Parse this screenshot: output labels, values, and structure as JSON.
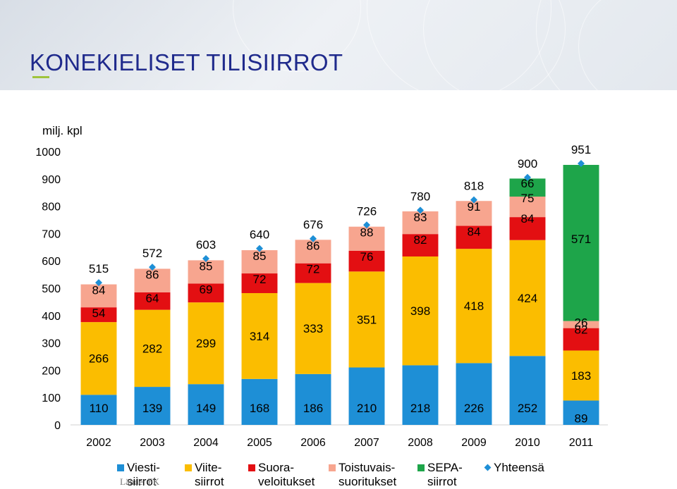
{
  "slide": {
    "title": "KONEKIELISET TILISIIRROT",
    "footer": "Lähde: FK"
  },
  "chart_data": {
    "type": "bar",
    "stacked": true,
    "unit_label": "milj. kpl",
    "categories": [
      "2002",
      "2003",
      "2004",
      "2005",
      "2006",
      "2007",
      "2008",
      "2009",
      "2010",
      "2011"
    ],
    "ylim": [
      0,
      1000
    ],
    "yticks": [
      0,
      100,
      200,
      300,
      400,
      500,
      600,
      700,
      800,
      900,
      1000
    ],
    "grid": false,
    "legend_position": "bottom",
    "series": [
      {
        "name": "Viesti-\nsiirrot",
        "color": "#1e8fd6",
        "values": [
          110,
          139,
          149,
          168,
          186,
          210,
          218,
          226,
          252,
          89
        ]
      },
      {
        "name": "Viite-\nsiirrot",
        "color": "#fbbd00",
        "values": [
          266,
          282,
          299,
          314,
          333,
          351,
          398,
          418,
          424,
          183
        ]
      },
      {
        "name": "Suora-\nveloitukset",
        "color": "#e30f12",
        "values": [
          54,
          64,
          69,
          72,
          72,
          76,
          82,
          84,
          84,
          82
        ]
      },
      {
        "name": "Toistuvais-\nsuoritukset",
        "color": "#f7a58f",
        "values": [
          84,
          86,
          85,
          85,
          86,
          88,
          83,
          91,
          75,
          26
        ]
      },
      {
        "name": "SEPA-\nsiirrot",
        "color": "#1ea54a",
        "values": [
          0,
          0,
          0,
          0,
          0,
          0,
          0,
          0,
          66,
          571
        ]
      },
      {
        "name": "Yhteensä",
        "color": "#1e8fd6",
        "type": "marker",
        "values": [
          515,
          572,
          603,
          640,
          676,
          726,
          780,
          818,
          900,
          951
        ]
      }
    ]
  }
}
